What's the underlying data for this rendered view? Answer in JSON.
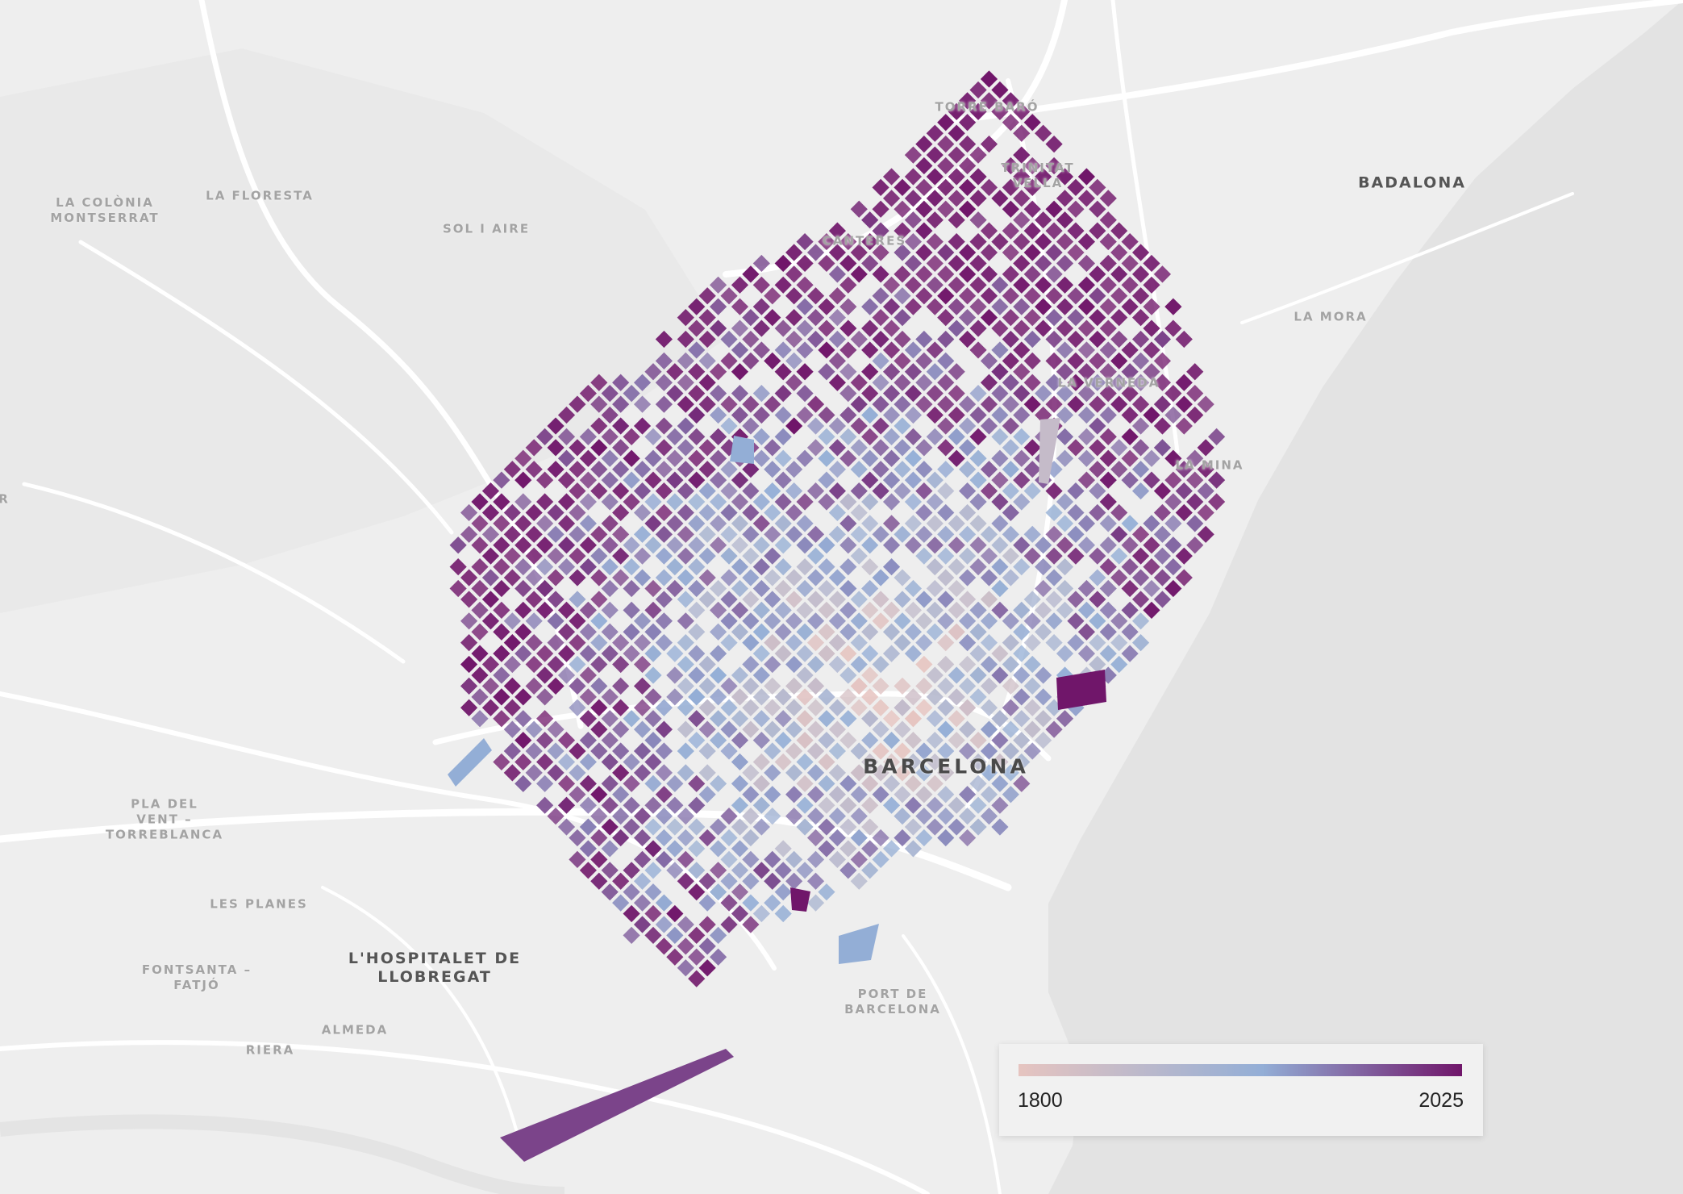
{
  "map": {
    "colors": {
      "land": "#eeeeee",
      "sea": "#e3e3e3",
      "road": "#ffffff",
      "building_old": "#e0b8b8",
      "building_mid": "#93aed6",
      "building_new": "#70166a"
    }
  },
  "labels": {
    "badalona": "BADALONA",
    "la_colonia": "LA COLÒNIA\nMONTSERRAT",
    "la_floresta": "LA FLORESTA",
    "sol_i_aire": "SOL I AIRE",
    "baro": "TORRE BARÓ",
    "trinitat": "TRINITAT\nVELLA",
    "canteres": "CANTERES",
    "la_mora": "LA MORA",
    "la_verneda": "LA VERNEDA",
    "la_mina": "LA MINA",
    "pla_del_vent": "PLA DEL\nVENT –\nTORREBLANCA",
    "les_planes": "LES PLANES",
    "hospitalet": "L'HOSPITALET DE\nLLOBREGAT",
    "fontsanta": "FONTSANTA –\nFATJÓ",
    "almeda": "ALMEDA",
    "riera": "RIERA",
    "port": "PORT DE\nBARCELONA",
    "barcelona": "BARCELONA",
    "edge": "R"
  },
  "legend": {
    "min_label": "1800",
    "max_label": "2025",
    "stops": [
      "#e6c4c0",
      "#93aed6",
      "#70166a"
    ]
  }
}
